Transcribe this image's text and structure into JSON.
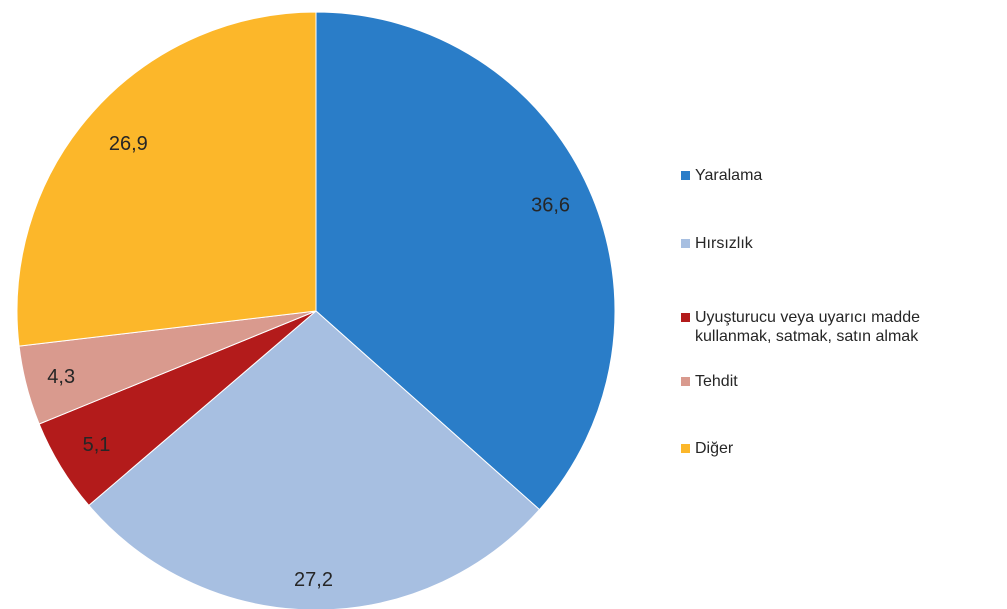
{
  "chart_data": {
    "type": "pie",
    "categories": [
      "Yaralama",
      "Hırsızlık",
      "Uyuşturucu veya uyarıcı madde\nkullanmak, satmak, satın almak",
      "Tehdit",
      "Diğer"
    ],
    "values": [
      36.6,
      27.2,
      5.1,
      4.3,
      26.9
    ],
    "value_labels": [
      "36,6",
      "27,2",
      "5,1",
      "4,3",
      "26,9"
    ],
    "colors": [
      "#2a7dc8",
      "#a7bfe1",
      "#b31b1b",
      "#d99a8e",
      "#fcb72a"
    ],
    "start_angle": "12 o'clock",
    "direction": "clockwise",
    "legend_position": "right"
  }
}
